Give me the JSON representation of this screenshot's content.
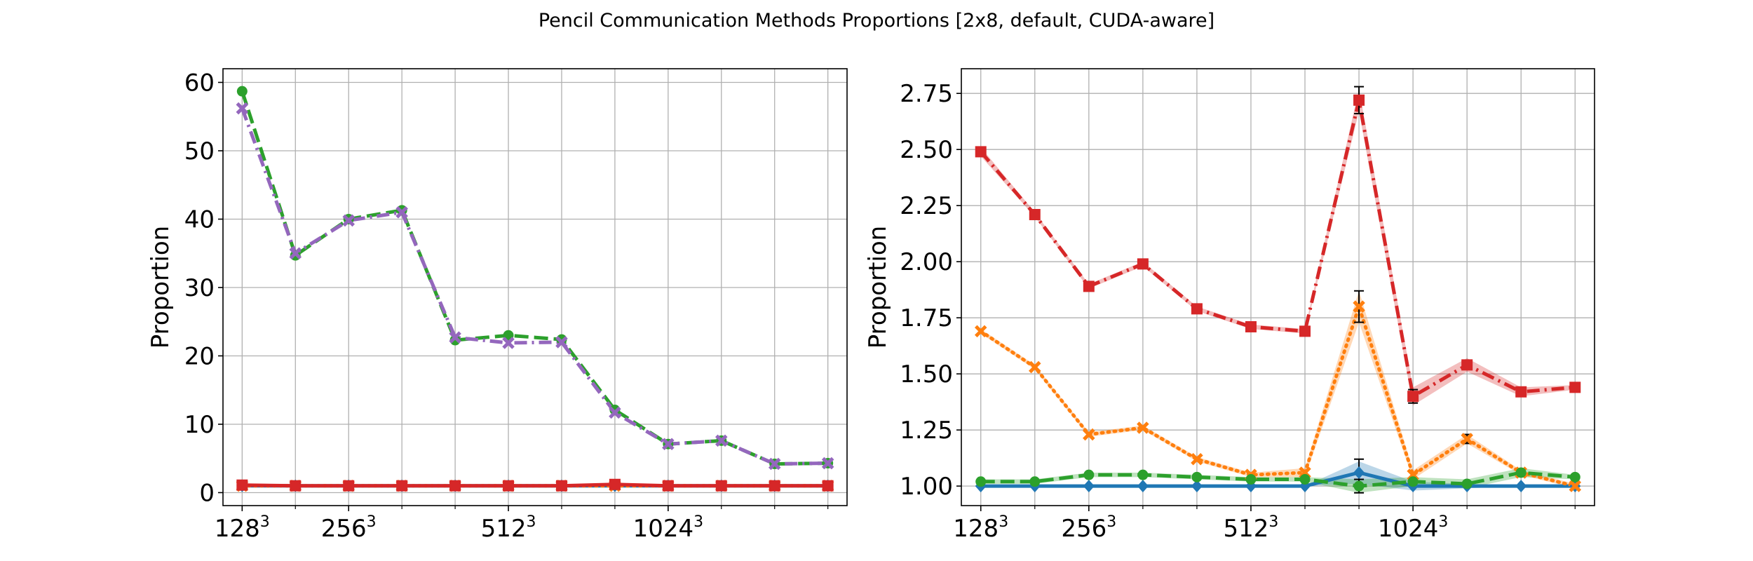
{
  "figure": {
    "title": "Pencil Communication Methods Proportions [2x8, default, CUDA-aware]"
  },
  "chart_data": [
    {
      "type": "line",
      "title": "",
      "xlabel": "",
      "ylabel": "Proportion",
      "x": [
        1,
        2,
        3,
        4,
        5,
        6,
        7,
        8,
        9,
        10,
        11,
        12
      ],
      "xlim": [
        0.64,
        12.36
      ],
      "ylim": [
        -1.9,
        62.0
      ],
      "xticks": [
        {
          "x": 1,
          "label": "128",
          "exp": "3"
        },
        {
          "x": 3,
          "label": "256",
          "exp": "3"
        },
        {
          "x": 6,
          "label": "512",
          "exp": "3"
        },
        {
          "x": 9,
          "label": "1024",
          "exp": "3"
        }
      ],
      "minor_xticks": [
        2,
        4,
        5,
        7,
        8,
        10,
        11,
        12
      ],
      "yticks": [
        0,
        10,
        20,
        30,
        40,
        50,
        60
      ],
      "grid": true,
      "series": [
        {
          "color": "#1f77b4",
          "style": "solid",
          "marker": "diamond",
          "values": [
            1.0,
            1.0,
            1.0,
            1.0,
            1.0,
            1.0,
            1.0,
            1.0,
            1.0,
            1.0,
            1.0,
            1.0
          ]
        },
        {
          "color": "#ff7f0e",
          "style": "dotted",
          "marker": "x",
          "values": [
            1.0,
            1.0,
            1.0,
            1.0,
            1.0,
            1.0,
            1.0,
            1.0,
            1.0,
            1.0,
            1.0,
            1.0
          ]
        },
        {
          "color": "#2ca02c",
          "style": "dashed",
          "marker": "circle",
          "values": [
            58.7,
            34.7,
            40.0,
            41.3,
            22.3,
            23.0,
            22.4,
            12.1,
            7.1,
            7.6,
            4.2,
            4.3
          ]
        },
        {
          "color": "#9467bd",
          "style": "dashdot",
          "marker": "x",
          "values": [
            56.2,
            35.0,
            39.8,
            41.0,
            22.7,
            21.9,
            22.0,
            11.7,
            7.1,
            7.6,
            4.2,
            4.3
          ]
        },
        {
          "color": "#d62728",
          "style": "solid",
          "marker": "square",
          "values": [
            1.1,
            1.0,
            1.0,
            1.0,
            1.0,
            1.0,
            1.0,
            1.2,
            1.0,
            1.0,
            1.0,
            1.0
          ]
        }
      ]
    },
    {
      "type": "line",
      "title": "",
      "xlabel": "",
      "ylabel": "Proportion",
      "x": [
        1,
        2,
        3,
        4,
        5,
        6,
        7,
        8,
        9,
        10,
        11,
        12
      ],
      "xlim": [
        0.64,
        12.36
      ],
      "ylim": [
        0.913,
        2.86
      ],
      "xticks": [
        {
          "x": 1,
          "label": "128",
          "exp": "3"
        },
        {
          "x": 3,
          "label": "256",
          "exp": "3"
        },
        {
          "x": 6,
          "label": "512",
          "exp": "3"
        },
        {
          "x": 9,
          "label": "1024",
          "exp": "3"
        }
      ],
      "minor_xticks": [
        2,
        4,
        5,
        7,
        8,
        10,
        11,
        12
      ],
      "yticks": [
        1.0,
        1.25,
        1.5,
        1.75,
        2.0,
        2.25,
        2.5,
        2.75
      ],
      "ytick_labels": [
        "1.00",
        "1.25",
        "1.50",
        "1.75",
        "2.00",
        "2.25",
        "2.50",
        "2.75"
      ],
      "grid": true,
      "series": [
        {
          "color": "#1f77b4",
          "style": "solid",
          "marker": "diamond",
          "values": [
            1.0,
            1.0,
            1.0,
            1.0,
            1.0,
            1.0,
            1.0,
            1.06,
            1.0,
            1.0,
            1.0,
            1.0
          ],
          "band": [
            0,
            0,
            0,
            0,
            0,
            0,
            0,
            0.05,
            0.02,
            0.01,
            0,
            0
          ],
          "err": [
            0,
            0,
            0,
            0,
            0,
            0,
            0,
            0.06,
            0,
            0,
            0,
            0
          ]
        },
        {
          "color": "#ff7f0e",
          "style": "dotted",
          "marker": "x",
          "values": [
            1.69,
            1.53,
            1.23,
            1.26,
            1.12,
            1.05,
            1.06,
            1.8,
            1.05,
            1.21,
            1.06,
            1.0
          ],
          "band": [
            0.01,
            0.01,
            0.01,
            0.01,
            0.01,
            0.01,
            0.02,
            0.07,
            0.02,
            0.02,
            0.01,
            0.01
          ],
          "err": [
            0,
            0,
            0,
            0,
            0,
            0,
            0,
            0.07,
            0,
            0.02,
            0,
            0
          ]
        },
        {
          "color": "#2ca02c",
          "style": "dashed",
          "marker": "circle",
          "values": [
            1.02,
            1.02,
            1.05,
            1.05,
            1.04,
            1.03,
            1.03,
            1.0,
            1.02,
            1.01,
            1.06,
            1.04
          ],
          "band": [
            0.01,
            0.01,
            0.01,
            0.01,
            0.01,
            0.01,
            0.01,
            0.03,
            0.02,
            0.02,
            0.02,
            0.01
          ],
          "err": [
            0,
            0,
            0,
            0,
            0,
            0,
            0,
            0.03,
            0,
            0,
            0,
            0
          ]
        },
        {
          "color": "#d62728",
          "style": "dashdot",
          "marker": "square",
          "values": [
            2.49,
            2.21,
            1.89,
            1.99,
            1.79,
            1.71,
            1.69,
            2.72,
            1.4,
            1.54,
            1.42,
            1.44
          ],
          "band": [
            0.02,
            0.01,
            0.01,
            0.01,
            0.01,
            0.01,
            0.01,
            0.05,
            0.04,
            0.03,
            0.02,
            0.01
          ],
          "err": [
            0,
            0,
            0,
            0,
            0,
            0,
            0,
            0.06,
            0.03,
            0.02,
            0,
            0
          ]
        }
      ]
    }
  ]
}
